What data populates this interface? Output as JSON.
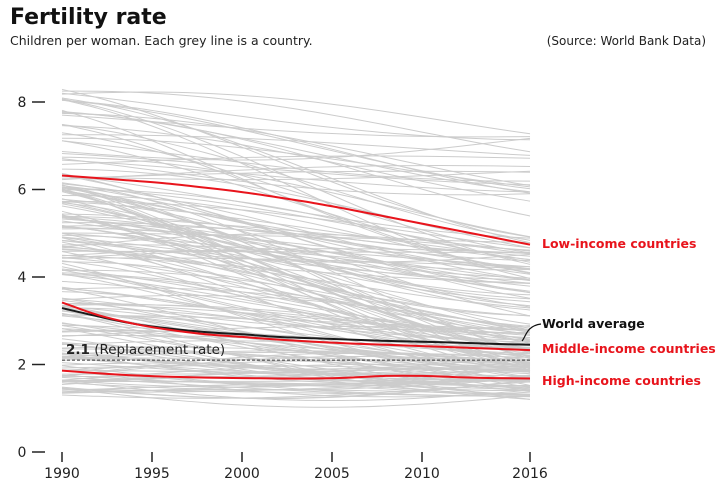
{
  "header": {
    "title": "Fertility rate",
    "subtitle": "Children per woman. Each grey line is a country.",
    "source": "(Source: World Bank Data)"
  },
  "chart_data": {
    "type": "line",
    "title": "Fertility rate",
    "subtitle": "Children per woman. Each grey line is a country.",
    "source": "(Source: World Bank Data)",
    "xlabel": "",
    "ylabel": "",
    "xlim": [
      1990,
      2016
    ],
    "ylim": [
      0,
      8
    ],
    "x_ticks": [
      1990,
      1995,
      2000,
      2005,
      2010,
      2016
    ],
    "y_ticks": [
      0,
      2,
      4,
      6,
      8
    ],
    "grid": false,
    "legend": "direct labels at right end of lines",
    "reference_line": {
      "value": 2.1,
      "value_label": "2.1",
      "label": "(Replacement rate)",
      "style": "dashed"
    },
    "x": [
      1990,
      1992,
      1994,
      1996,
      1998,
      2000,
      2002,
      2004,
      2006,
      2008,
      2010,
      2012,
      2014,
      2016
    ],
    "series": [
      {
        "name": "Low-income countries",
        "color": "#e8141c",
        "values": [
          6.32,
          6.26,
          6.2,
          6.13,
          6.04,
          5.94,
          5.82,
          5.69,
          5.54,
          5.38,
          5.22,
          5.06,
          4.9,
          4.74
        ]
      },
      {
        "name": "World average",
        "color": "#1a1a1a",
        "values": [
          3.29,
          3.1,
          2.93,
          2.82,
          2.74,
          2.69,
          2.63,
          2.6,
          2.57,
          2.54,
          2.52,
          2.5,
          2.47,
          2.45
        ]
      },
      {
        "name": "Middle-income countries",
        "color": "#e8141c",
        "values": [
          3.42,
          3.13,
          2.93,
          2.79,
          2.69,
          2.63,
          2.57,
          2.52,
          2.48,
          2.45,
          2.42,
          2.39,
          2.36,
          2.33
        ]
      },
      {
        "name": "High-income countries",
        "color": "#e8141c",
        "values": [
          1.86,
          1.8,
          1.75,
          1.72,
          1.7,
          1.69,
          1.68,
          1.68,
          1.7,
          1.74,
          1.74,
          1.71,
          1.69,
          1.68
        ]
      }
    ],
    "countries": {
      "description_count": 200,
      "color": "#cccccc",
      "range_1990": [
        1.3,
        8.6
      ],
      "range_2016": [
        1.2,
        7.3
      ]
    }
  }
}
